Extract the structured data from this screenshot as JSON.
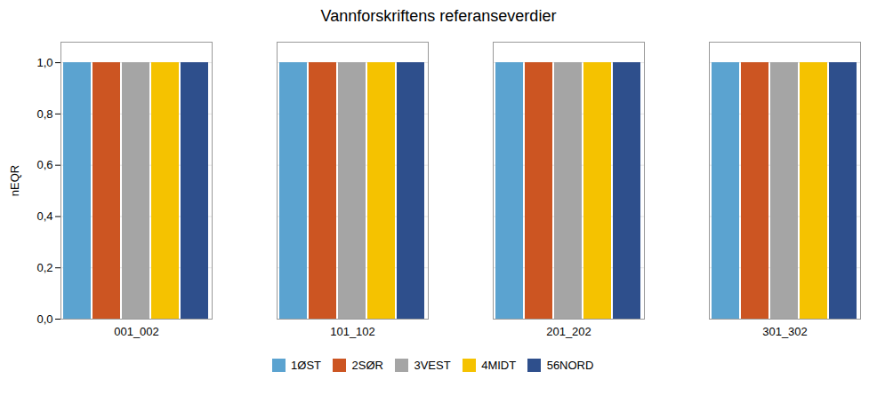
{
  "chart_data": {
    "type": "bar",
    "title": "Vannforskriftens referanseverdier",
    "ylabel": "nEQR",
    "categories": [
      "001_002",
      "101_102",
      "201_202",
      "301_302"
    ],
    "series": [
      {
        "name": "1ØST",
        "color": "#5BA3D0",
        "values": [
          1.0,
          1.0,
          1.0,
          1.0
        ]
      },
      {
        "name": "2SØR",
        "color": "#CC5522",
        "values": [
          1.0,
          1.0,
          1.0,
          1.0
        ]
      },
      {
        "name": "3VEST",
        "color": "#A5A5A5",
        "values": [
          1.0,
          1.0,
          1.0,
          1.0
        ]
      },
      {
        "name": "4MIDT",
        "color": "#F5C200",
        "values": [
          1.0,
          1.0,
          1.0,
          1.0
        ]
      },
      {
        "name": "56NORD",
        "color": "#2E4F8C",
        "values": [
          1.0,
          1.0,
          1.0,
          1.0
        ]
      }
    ],
    "ylim": [
      0.0,
      1.08
    ],
    "yticks": [
      {
        "value": 0.0,
        "label": "0,0"
      },
      {
        "value": 0.2,
        "label": "0,2"
      },
      {
        "value": 0.4,
        "label": "0,4"
      },
      {
        "value": 0.6,
        "label": "0,6"
      },
      {
        "value": 0.8,
        "label": "0,8"
      },
      {
        "value": 1.0,
        "label": "1,0"
      }
    ],
    "grid": true,
    "legend": "bottom"
  }
}
